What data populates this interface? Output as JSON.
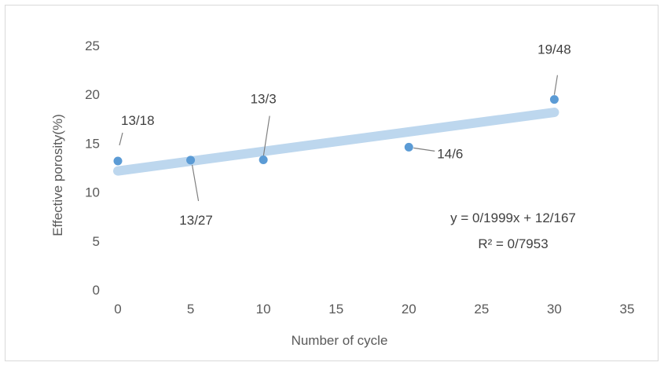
{
  "chart_data": {
    "type": "scatter",
    "xlabel": "Number of cycle",
    "ylabel": "Effective  porosity(%)",
    "xlim": [
      0,
      35
    ],
    "ylim": [
      0,
      25
    ],
    "x_ticks": [
      "0",
      "5",
      "10",
      "15",
      "20",
      "25",
      "30",
      "35"
    ],
    "y_ticks": [
      "0",
      "5",
      "10",
      "15",
      "20",
      "25"
    ],
    "points": [
      {
        "x": 0,
        "y": 13.18,
        "label": "13/18"
      },
      {
        "x": 5,
        "y": 13.27,
        "label": "13/27"
      },
      {
        "x": 10,
        "y": 13.3,
        "label": "13/3"
      },
      {
        "x": 20,
        "y": 14.6,
        "label": "14/6"
      },
      {
        "x": 30,
        "y": 19.48,
        "label": "19/48"
      }
    ],
    "trendline": {
      "type": "linear",
      "slope": 0.1999,
      "intercept": 12.167,
      "equation": "y = 0/1999x + 12/167",
      "r_squared": "R² = 0/7953"
    },
    "marker_color": "#5b9bd5",
    "trend_color": "#bdd7ee",
    "grid": false,
    "legend": "none"
  }
}
